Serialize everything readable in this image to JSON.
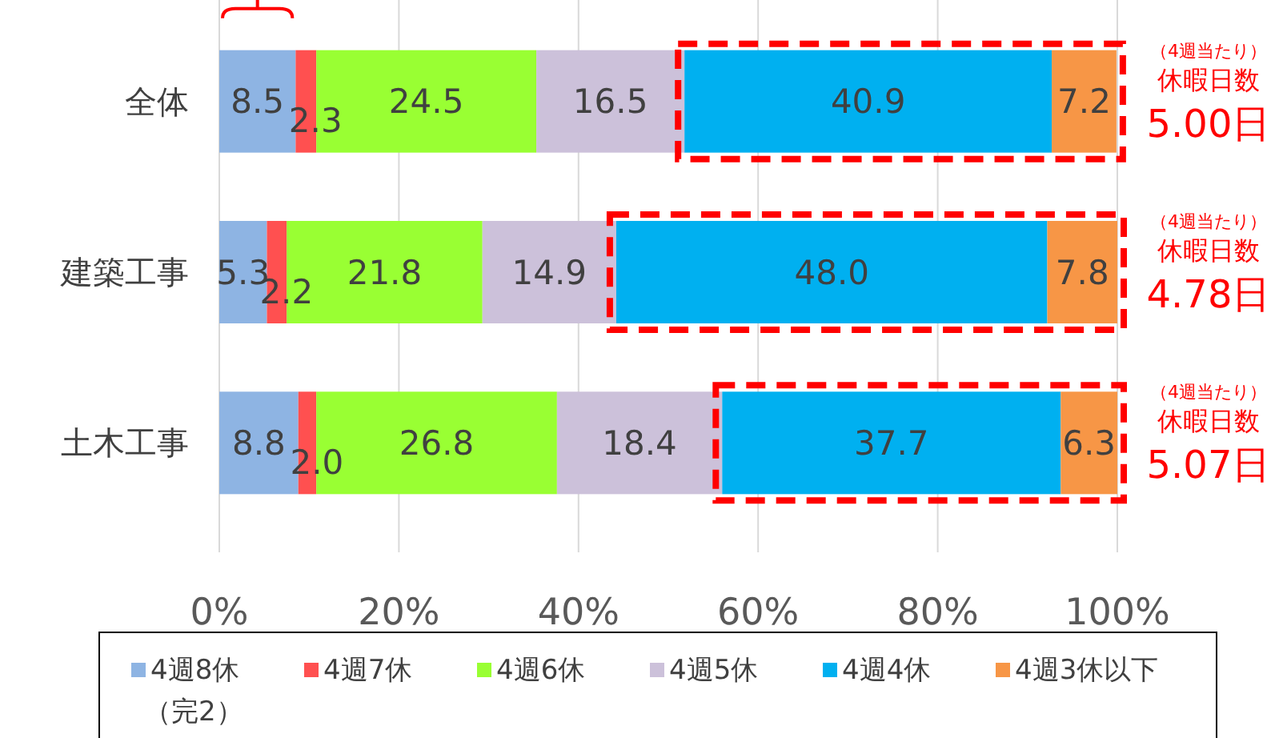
{
  "chart_data": {
    "type": "bar",
    "orientation": "horizontal",
    "stacked": true,
    "categories": [
      "全体",
      "建築工事",
      "土木工事"
    ],
    "series": [
      {
        "name": "4週8休（完2）",
        "color": "#8eb4e3",
        "values": [
          8.5,
          5.3,
          8.8
        ],
        "value_labels": [
          "8.5",
          "5.3",
          "8.8"
        ]
      },
      {
        "name": "4週7休",
        "color": "#ff5050",
        "values": [
          2.3,
          2.2,
          2.0
        ],
        "value_labels": [
          "2.3",
          "2.2",
          "2.0"
        ]
      },
      {
        "name": "4週6休",
        "color": "#99ff33",
        "values": [
          24.5,
          21.8,
          26.8
        ],
        "value_labels": [
          "24.5",
          "21.8",
          "26.8"
        ]
      },
      {
        "name": "4週5休",
        "color": "#ccc1da",
        "values": [
          16.5,
          14.9,
          18.4
        ],
        "value_labels": [
          "16.5",
          "14.9",
          "18.4"
        ]
      },
      {
        "name": "4週4休",
        "color": "#00b0f0",
        "values": [
          40.9,
          48.0,
          37.7
        ],
        "value_labels": [
          "40.9",
          "48.0",
          "37.7"
        ]
      },
      {
        "name": "4週3休以下",
        "color": "#f79646",
        "values": [
          7.2,
          7.8,
          6.3
        ],
        "value_labels": [
          "7.2",
          "7.8",
          "6.3"
        ]
      }
    ],
    "xlim": [
      0,
      100
    ],
    "xticks": [
      {
        "value": 0,
        "label": "0%"
      },
      {
        "value": 20,
        "label": "20%"
      },
      {
        "value": 40,
        "label": "40%"
      },
      {
        "value": 60,
        "label": "60%"
      },
      {
        "value": 80,
        "label": "80%"
      },
      {
        "value": 100,
        "label": "100%"
      }
    ],
    "grid": "x",
    "legend": "bottom",
    "annotations": [
      "（4週当たり）",
      "休暇日数",
      "5.00日",
      "（4週当たり）",
      "休暇日数",
      "4.78日",
      "（4週当たり）",
      "休暇日数",
      "5.07日"
    ]
  }
}
